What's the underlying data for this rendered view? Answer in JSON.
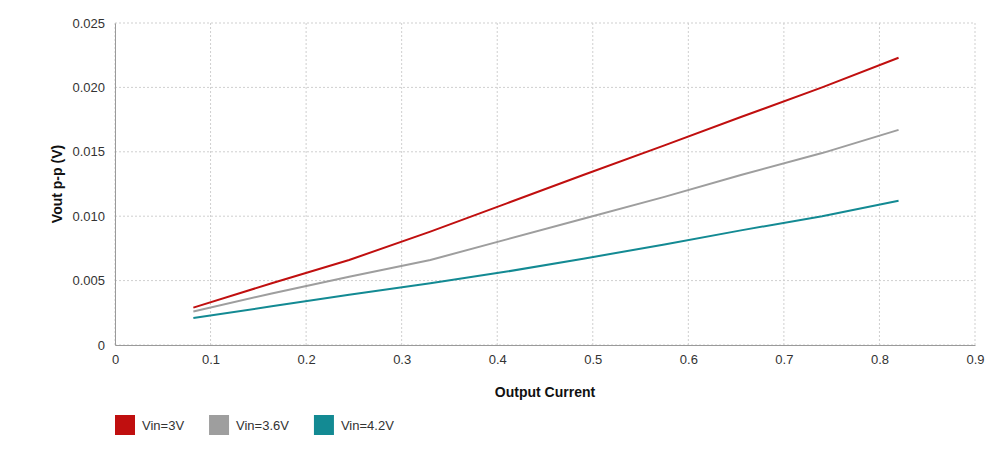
{
  "chart_data": {
    "type": "line",
    "x_label": "Output Current",
    "y_label": "Vout p-p (V)",
    "x": [
      0.082,
      0.164,
      0.245,
      0.33,
      0.41,
      0.49,
      0.575,
      0.655,
      0.74,
      0.82
    ],
    "series": [
      {
        "name": "Vin=3V",
        "color": "#c00f0f",
        "values": [
          0.0029,
          0.0048,
          0.0066,
          0.0088,
          0.011,
          0.0132,
          0.0155,
          0.0177,
          0.02,
          0.0223
        ]
      },
      {
        "name": "Vin=3.6V",
        "color": "#9e9e9e",
        "values": [
          0.0026,
          0.004,
          0.0053,
          0.0066,
          0.0082,
          0.0098,
          0.0115,
          0.0132,
          0.0149,
          0.0167
        ]
      },
      {
        "name": "Vin=4.2V",
        "color": "#138a93",
        "values": [
          0.0021,
          0.003,
          0.0039,
          0.0048,
          0.0057,
          0.0067,
          0.0078,
          0.0089,
          0.01,
          0.0112
        ]
      }
    ],
    "xlim": [
      0,
      0.9
    ],
    "xticks": [
      0,
      0.1,
      0.2,
      0.3,
      0.4,
      0.5,
      0.6,
      0.7,
      0.8,
      0.9
    ],
    "ylim": [
      0,
      0.025
    ],
    "yticks": [
      0,
      0.005,
      {
        "value": 0.01,
        "label": "0.010"
      },
      0.015,
      {
        "value": 0.02,
        "label": "0.020"
      },
      0.025
    ],
    "grid": true,
    "legend": "bottom-left"
  }
}
